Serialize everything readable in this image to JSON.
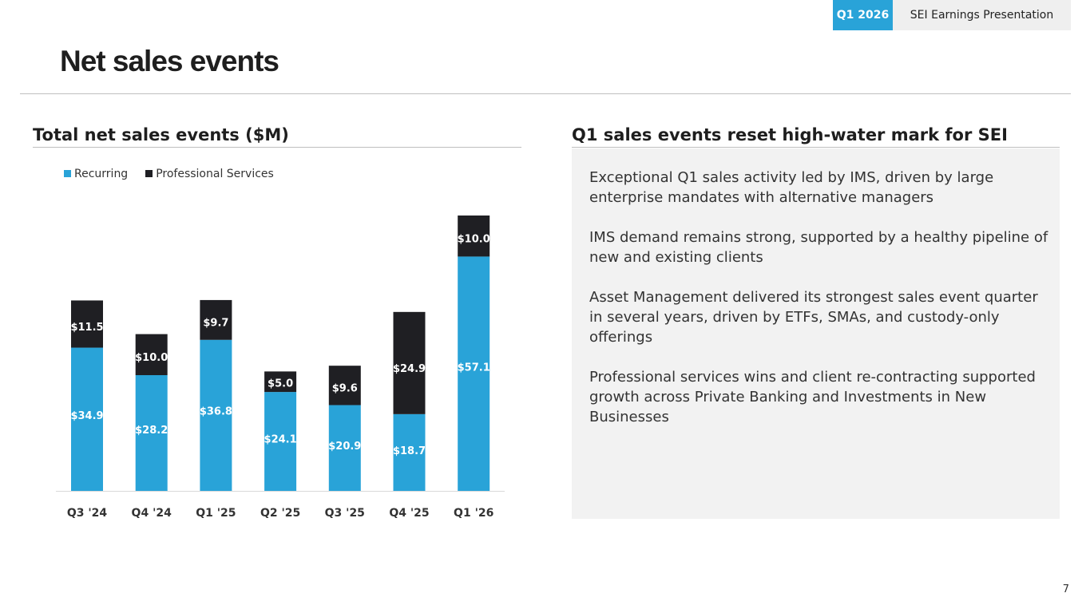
{
  "header": {
    "quarter_tag": "Q1 2026",
    "presentation_title": "SEI Earnings Presentation"
  },
  "page_title": "Net sales events",
  "left_heading": "Total net sales events ($M)",
  "right_heading": "Q1 sales events reset high-water mark for SEI",
  "bullets": [
    "Exceptional Q1 sales activity led by IMS, driven by large enterprise mandates with alternative managers",
    "IMS demand remains strong, supported by a healthy pipeline of new and existing clients",
    "Asset Management delivered its strongest sales event quarter in several years, driven by ETFs, SMAs, and custody-only offerings",
    "Professional services wins and client re-contracting supported growth across Private Banking and Investments in New Businesses"
  ],
  "page_number": "7",
  "colors": {
    "recurring": "#29a3d8",
    "professional_services": "#1f1f23",
    "accent": "#29a3d8"
  },
  "chart_data": {
    "type": "bar",
    "stacked": true,
    "title": "Total net sales events ($M)",
    "categories": [
      "Q3 '24",
      "Q4 '24",
      "Q1 '25",
      "Q2 '25",
      "Q3 '25",
      "Q4 '25",
      "Q1 '26"
    ],
    "series": [
      {
        "name": "Recurring",
        "values": [
          34.9,
          28.2,
          36.8,
          24.1,
          20.9,
          18.7,
          57.1
        ],
        "labels": [
          "$34.9",
          "$28.2",
          "$36.8",
          "$24.1",
          "$20.9",
          "$18.7",
          "$57.1"
        ]
      },
      {
        "name": "Professional Services",
        "values": [
          11.5,
          10.0,
          9.7,
          5.0,
          9.6,
          24.9,
          10.0
        ],
        "labels": [
          "$11.5",
          "$10.0",
          "$9.7",
          "$5.0",
          "$9.6",
          "$24.9",
          "$10.0"
        ]
      }
    ],
    "ylim": [
      0,
      67.1
    ],
    "grid": false,
    "legend": "top-left"
  }
}
